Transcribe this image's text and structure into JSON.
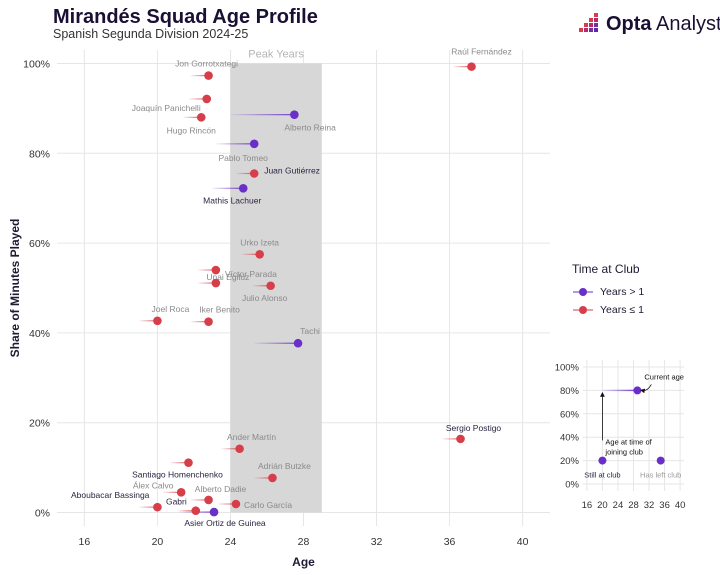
{
  "title": "Mirandés Squad Age Profile",
  "subtitle": "Spanish Segunda Division 2024-25",
  "brand": {
    "name_bold": "Opta",
    "name_light": " Analyst",
    "logo_icon": "opta-dots-logo-icon"
  },
  "colors": {
    "over_one": "#6a2fc8",
    "under_one": "#d63f4a",
    "peak_band": "#d5d5d5"
  },
  "legend": {
    "title": "Time at Club",
    "items": [
      {
        "label": "Years > 1",
        "color": "#6a2fc8"
      },
      {
        "label": "Years ≤ 1",
        "color": "#d63f4a"
      }
    ]
  },
  "chart_data": {
    "type": "scatter",
    "xlabel": "Age",
    "ylabel": "Share of Minutes Played",
    "xlim": [
      14.5,
      41.5
    ],
    "ylim": [
      -0.03,
      1.03
    ],
    "xticks": [
      16,
      20,
      24,
      28,
      32,
      36,
      40
    ],
    "yticks": [
      0,
      0.2,
      0.4,
      0.6,
      0.8,
      1.0
    ],
    "ytick_labels": [
      "0%",
      "20%",
      "40%",
      "60%",
      "80%",
      "100%"
    ],
    "peak_band": {
      "label": "Peak Years",
      "x": [
        24,
        29
      ]
    },
    "grid": true,
    "points": [
      {
        "name": "Raúl Fernández",
        "age": 37.2,
        "share": 0.993,
        "joined": 36.2,
        "group": "under_one"
      },
      {
        "name": "Jon Gorrotxategi",
        "age": 22.8,
        "share": 0.973,
        "joined": 21.8,
        "group": "under_one"
      },
      {
        "name": "Joaquín Panichelli",
        "age": 22.7,
        "share": 0.921,
        "joined": 21.7,
        "group": "under_one"
      },
      {
        "name": "Alberto Reina",
        "age": 27.5,
        "share": 0.886,
        "joined": 24.0,
        "group": "over_one"
      },
      {
        "name": "Hugo Rincón",
        "age": 22.4,
        "share": 0.88,
        "joined": 21.4,
        "group": "under_one"
      },
      {
        "name": "Pablo Tomeo",
        "age": 25.3,
        "share": 0.821,
        "joined": 23.2,
        "group": "over_one"
      },
      {
        "name": "Juan Gutiérrez",
        "age": 25.3,
        "share": 0.755,
        "joined": 24.3,
        "group": "under_one"
      },
      {
        "name": "Mathis Lachuer",
        "age": 24.7,
        "share": 0.722,
        "joined": 23.0,
        "group": "over_one"
      },
      {
        "name": "Urko Izeta",
        "age": 25.6,
        "share": 0.575,
        "joined": 24.6,
        "group": "under_one"
      },
      {
        "name": "Unai Egiluz",
        "age": 23.2,
        "share": 0.54,
        "joined": 22.2,
        "group": "under_one"
      },
      {
        "name": "Víctor Parada",
        "age": 23.2,
        "share": 0.511,
        "joined": 22.2,
        "group": "under_one"
      },
      {
        "name": "Julio Alonso",
        "age": 26.2,
        "share": 0.505,
        "joined": 25.2,
        "group": "under_one"
      },
      {
        "name": "Joel Roca",
        "age": 20.0,
        "share": 0.427,
        "joined": 19.0,
        "group": "under_one"
      },
      {
        "name": "Iker Benito",
        "age": 22.8,
        "share": 0.425,
        "joined": 21.8,
        "group": "under_one"
      },
      {
        "name": "Tachi",
        "age": 27.7,
        "share": 0.377,
        "joined": 25.3,
        "group": "over_one"
      },
      {
        "name": "Sergio Postigo",
        "age": 36.6,
        "share": 0.164,
        "joined": 35.6,
        "group": "under_one"
      },
      {
        "name": "Ander Martín",
        "age": 24.5,
        "share": 0.142,
        "joined": 23.5,
        "group": "under_one"
      },
      {
        "name": "Santiago Homenchenko",
        "age": 21.7,
        "share": 0.111,
        "joined": 20.7,
        "group": "under_one"
      },
      {
        "name": "Adrián Butzke",
        "age": 26.3,
        "share": 0.077,
        "joined": 25.3,
        "group": "under_one"
      },
      {
        "name": "Álex Calvo",
        "age": 21.3,
        "share": 0.045,
        "joined": 20.3,
        "group": "under_one"
      },
      {
        "name": "Alberto Dadie",
        "age": 22.8,
        "share": 0.028,
        "joined": 21.8,
        "group": "under_one"
      },
      {
        "name": "Carlo García",
        "age": 24.3,
        "share": 0.019,
        "joined": 23.3,
        "group": "under_one"
      },
      {
        "name": "Aboubacar Bassinga",
        "age": 20.0,
        "share": 0.012,
        "joined": 19.0,
        "group": "under_one"
      },
      {
        "name": "Gabri",
        "age": 22.1,
        "share": 0.004,
        "joined": 21.1,
        "group": "under_one"
      },
      {
        "name": "Asier Ortiz de Guinea",
        "age": 23.1,
        "share": 0.001,
        "joined": 21.2,
        "group": "over_one"
      }
    ]
  },
  "inset": {
    "xlim": [
      15,
      41
    ],
    "ylim": [
      -0.06,
      1.06
    ],
    "xticks": [
      16,
      20,
      24,
      28,
      32,
      36,
      40
    ],
    "yticks": [
      0,
      0.2,
      0.4,
      0.6,
      0.8,
      1.0
    ],
    "ytick_labels": [
      "0%",
      "20%",
      "40%",
      "60%",
      "80%",
      "100%"
    ],
    "example_point": {
      "age": 29,
      "joined": 20,
      "share": 0.8
    },
    "still_point": {
      "age": 20,
      "share": 0.2
    },
    "left_point": {
      "age": 35,
      "share": 0.2
    },
    "current_age_label": "Current age",
    "joining_label_line1": "Age at time of",
    "joining_label_line2": "joining club",
    "still_label": "Still at club",
    "left_label": "Has left club"
  }
}
